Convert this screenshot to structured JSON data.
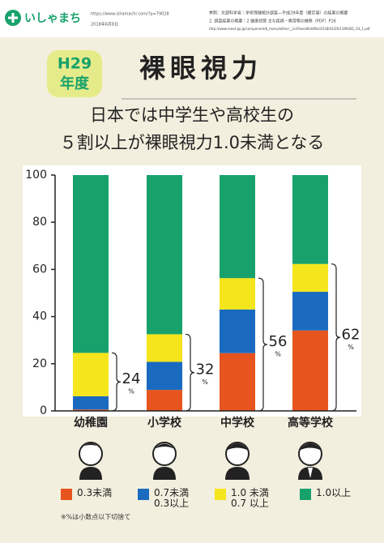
{
  "header": {
    "logo": "いしゃまち",
    "url": "https://www.ishamachi.com/?p=79028",
    "date": "2018年6月8日",
    "source": [
      "参照：文部科学省｜学校保健統計調査―平成29年度（確定値）の結果の概要",
      "2. 調査結果の概要｜2 健康状態 主な疾病・異常等の推移（PDF）P16",
      "http://www.mext.go.jp/component/b_menu/other/__icsFiles/afieldfile/2018/03/26/1399281_03_1.pdf"
    ]
  },
  "badge": {
    "year": "H29",
    "unit": "年度"
  },
  "title": "裸眼視力",
  "subtitle": [
    "日本では中学生や高校生の",
    "５割以上が裸眼視力1.0未満となる"
  ],
  "chart_data": {
    "type": "bar",
    "stacked": true,
    "categories": [
      "幼稚園",
      "小学校",
      "中学校",
      "高等学校"
    ],
    "series": [
      {
        "name": "0.3未満",
        "color": "#e8541e",
        "values": [
          0.6,
          8.9,
          24.5,
          34.1
        ]
      },
      {
        "name": "0.7未満\n0.3以上",
        "color": "#1a6bbf",
        "values": [
          5.6,
          11.9,
          18.5,
          16.4
        ]
      },
      {
        "name": "1.0 未満\n0.7 以上",
        "color": "#f5e51c",
        "values": [
          18.4,
          11.7,
          13.3,
          11.8
        ]
      },
      {
        "name": "1.0以上",
        "color": "#18a26b",
        "values": [
          75.4,
          67.5,
          43.7,
          37.7
        ]
      }
    ],
    "ylim": [
      0,
      100
    ],
    "yticks": [
      0,
      20,
      40,
      60,
      80,
      100
    ],
    "bracket_labels": [
      {
        "number": "24",
        "unit": "%"
      },
      {
        "number": "32",
        "unit": "%"
      },
      {
        "number": "56",
        "unit": "%"
      },
      {
        "number": "62",
        "unit": "%"
      }
    ],
    "footnote": "※%は小数点以下切捨て"
  }
}
